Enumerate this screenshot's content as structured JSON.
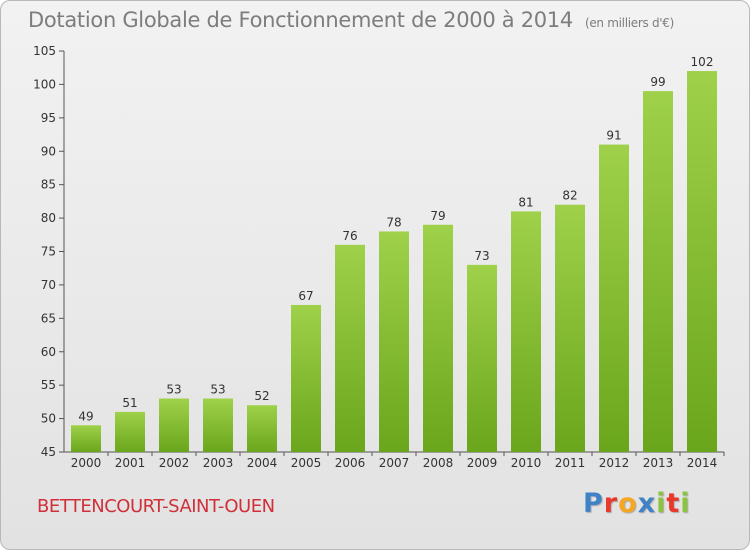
{
  "header": {
    "title": "Dotation Globale de Fonctionnement de 2000 à 2014",
    "unit_note": "(en milliers d'€)"
  },
  "footer": {
    "commune": "BETTENCOURT-SAINT-OUEN",
    "logo_text": "Proxiti"
  },
  "colors": {
    "bar_light": "#9fd14a",
    "bar_dark": "#6aa61c",
    "title": "#7d7d7d",
    "commune": "#d0303a",
    "logo": [
      "#3f83c6",
      "#e8392b",
      "#f5a623",
      "#3f83c6",
      "#8bc43f",
      "#e8392b",
      "#8bc43f"
    ]
  },
  "chart_data": {
    "type": "bar",
    "title": "Dotation Globale de Fonctionnement de 2000 à 2014",
    "subtitle": "(en milliers d'€)",
    "xlabel": "",
    "ylabel": "",
    "categories": [
      "2000",
      "2001",
      "2002",
      "2003",
      "2004",
      "2005",
      "2006",
      "2007",
      "2008",
      "2009",
      "2010",
      "2011",
      "2012",
      "2013",
      "2014"
    ],
    "values": [
      49,
      51,
      53,
      53,
      52,
      67,
      76,
      78,
      79,
      73,
      81,
      82,
      91,
      99,
      102
    ],
    "ylim": [
      45,
      105
    ],
    "yticks": [
      45,
      50,
      55,
      60,
      65,
      70,
      75,
      80,
      85,
      90,
      95,
      100,
      105
    ],
    "grid": false,
    "legend": "none"
  }
}
